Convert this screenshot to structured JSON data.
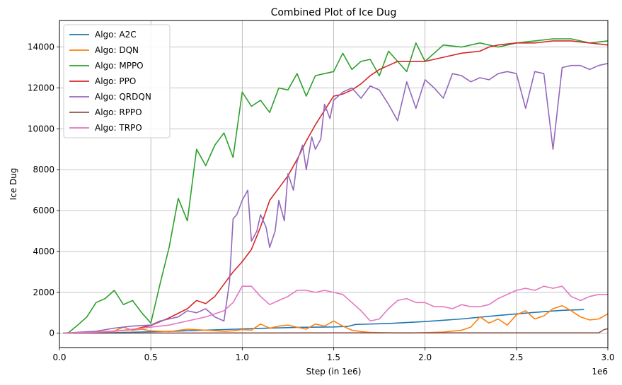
{
  "chart_data": {
    "type": "line",
    "title": "Combined Plot of Ice Dug",
    "xlabel": "Step (in 1e6)",
    "ylabel": "Ice Dug",
    "x_offset_label": "1e6",
    "xlim": [
      0,
      3.0
    ],
    "ylim": [
      -700,
      15300
    ],
    "x_ticks": [
      0,
      0.5,
      1.0,
      1.5,
      2.0,
      2.5,
      3.0
    ],
    "x_tick_labels": [
      "0.0",
      "0.5",
      "1.0",
      "1.5",
      "2.0",
      "2.5",
      "3.0"
    ],
    "y_ticks": [
      0,
      2000,
      4000,
      6000,
      8000,
      10000,
      12000,
      14000
    ],
    "y_tick_labels": [
      "0",
      "2000",
      "4000",
      "6000",
      "8000",
      "10000",
      "12000",
      "14000"
    ],
    "grid": true,
    "legend_position": "top-left",
    "series": [
      {
        "name": "Algo: A2C",
        "color": "#1f77b4",
        "x": [
          0.02,
          0.3,
          0.6,
          0.9,
          1.1,
          1.3,
          1.5,
          1.58,
          1.62,
          1.8,
          2.0,
          2.2,
          2.4,
          2.6,
          2.75,
          2.87
        ],
        "y": [
          0,
          30,
          90,
          180,
          240,
          290,
          310,
          340,
          430,
          480,
          570,
          700,
          870,
          1020,
          1120,
          1160
        ]
      },
      {
        "name": "Algo: DQN",
        "color": "#ff7f0e",
        "x": [
          0.02,
          0.2,
          0.3,
          0.35,
          0.4,
          0.45,
          0.5,
          0.6,
          0.7,
          0.8,
          0.9,
          0.95,
          1.0,
          1.05,
          1.1,
          1.15,
          1.2,
          1.25,
          1.3,
          1.35,
          1.4,
          1.45,
          1.5,
          1.55,
          1.6,
          1.65,
          1.7,
          1.8,
          1.9,
          2.0,
          2.1,
          2.2,
          2.25,
          2.3,
          2.35,
          2.4,
          2.45,
          2.5,
          2.55,
          2.6,
          2.65,
          2.7,
          2.75,
          2.8,
          2.85,
          2.9,
          2.95,
          3.0
        ],
        "y": [
          0,
          60,
          110,
          300,
          150,
          200,
          120,
          80,
          200,
          150,
          100,
          120,
          180,
          150,
          450,
          250,
          350,
          400,
          300,
          200,
          450,
          350,
          600,
          350,
          150,
          80,
          40,
          20,
          10,
          30,
          60,
          150,
          300,
          800,
          500,
          700,
          400,
          900,
          1100,
          700,
          850,
          1200,
          1350,
          1100,
          800,
          650,
          700,
          950
        ]
      },
      {
        "name": "Algo: MPPO",
        "color": "#2ca02c",
        "x": [
          0.02,
          0.05,
          0.1,
          0.15,
          0.2,
          0.25,
          0.3,
          0.35,
          0.4,
          0.45,
          0.5,
          0.55,
          0.6,
          0.65,
          0.7,
          0.75,
          0.8,
          0.85,
          0.9,
          0.95,
          1.0,
          1.05,
          1.1,
          1.15,
          1.2,
          1.25,
          1.3,
          1.35,
          1.4,
          1.45,
          1.5,
          1.55,
          1.6,
          1.65,
          1.7,
          1.75,
          1.8,
          1.85,
          1.9,
          1.95,
          2.0,
          2.1,
          2.2,
          2.3,
          2.4,
          2.5,
          2.6,
          2.7,
          2.8,
          2.9,
          3.0
        ],
        "y": [
          0,
          30,
          400,
          800,
          1500,
          1700,
          2100,
          1400,
          1600,
          1000,
          500,
          2400,
          4200,
          6600,
          5500,
          9000,
          8200,
          9200,
          9800,
          8600,
          11800,
          11100,
          11400,
          10800,
          12000,
          11900,
          12700,
          11600,
          12600,
          12700,
          12800,
          13700,
          12900,
          13300,
          13400,
          12600,
          13800,
          13300,
          12800,
          14200,
          13300,
          14100,
          14000,
          14200,
          14000,
          14200,
          14300,
          14400,
          14400,
          14200,
          14300
        ]
      },
      {
        "name": "Algo: PPO",
        "color": "#d62728",
        "x": [
          0.02,
          0.2,
          0.3,
          0.4,
          0.5,
          0.6,
          0.7,
          0.75,
          0.8,
          0.85,
          0.9,
          0.95,
          1.0,
          1.05,
          1.1,
          1.15,
          1.2,
          1.25,
          1.3,
          1.35,
          1.4,
          1.45,
          1.5,
          1.55,
          1.6,
          1.65,
          1.7,
          1.75,
          1.8,
          1.85,
          1.9,
          2.0,
          2.1,
          2.2,
          2.3,
          2.35,
          2.4,
          2.5,
          2.6,
          2.7,
          2.8,
          2.9,
          3.0
        ],
        "y": [
          0,
          50,
          100,
          180,
          380,
          750,
          1200,
          1600,
          1450,
          1800,
          2400,
          3000,
          3500,
          4100,
          5200,
          6500,
          7100,
          7700,
          8500,
          9400,
          10200,
          10900,
          11600,
          11700,
          11900,
          12200,
          12600,
          12900,
          13100,
          13300,
          13300,
          13300,
          13500,
          13700,
          13800,
          14000,
          14100,
          14200,
          14200,
          14300,
          14300,
          14200,
          14100
        ]
      },
      {
        "name": "Algo: QRDQN",
        "color": "#9467bd",
        "x": [
          0.02,
          0.2,
          0.3,
          0.4,
          0.5,
          0.55,
          0.6,
          0.65,
          0.7,
          0.75,
          0.8,
          0.85,
          0.9,
          0.93,
          0.95,
          0.97,
          1.0,
          1.03,
          1.05,
          1.08,
          1.1,
          1.13,
          1.15,
          1.18,
          1.2,
          1.23,
          1.25,
          1.28,
          1.3,
          1.33,
          1.35,
          1.38,
          1.4,
          1.43,
          1.45,
          1.48,
          1.5,
          1.55,
          1.6,
          1.65,
          1.7,
          1.75,
          1.8,
          1.85,
          1.9,
          1.95,
          2.0,
          2.05,
          2.1,
          2.15,
          2.2,
          2.25,
          2.3,
          2.35,
          2.4,
          2.45,
          2.5,
          2.55,
          2.6,
          2.65,
          2.7,
          2.75,
          2.8,
          2.85,
          2.9,
          2.95,
          3.0
        ],
        "y": [
          0,
          100,
          250,
          350,
          400,
          600,
          700,
          800,
          1100,
          1000,
          1200,
          800,
          600,
          2500,
          5600,
          5800,
          6500,
          7000,
          4500,
          5000,
          5800,
          5200,
          4200,
          5000,
          6500,
          5500,
          7800,
          7000,
          8400,
          9200,
          8000,
          9600,
          9000,
          9500,
          11200,
          10500,
          11400,
          11800,
          12000,
          11500,
          12100,
          11900,
          11200,
          10400,
          12300,
          11000,
          12400,
          12000,
          11500,
          12700,
          12600,
          12300,
          12500,
          12400,
          12700,
          12800,
          12700,
          11000,
          12800,
          12700,
          9000,
          13000,
          13100,
          13100,
          12900,
          13100,
          13200
        ]
      },
      {
        "name": "Algo: RPPO",
        "color": "#8c564b",
        "x": [
          0.02,
          0.5,
          1.0,
          1.5,
          2.0,
          2.5,
          2.95,
          2.98,
          3.0
        ],
        "y": [
          0,
          10,
          15,
          20,
          20,
          20,
          20,
          180,
          220
        ]
      },
      {
        "name": "Algo: TRPO",
        "color": "#e377c2",
        "x": [
          0.02,
          0.2,
          0.3,
          0.4,
          0.5,
          0.6,
          0.7,
          0.8,
          0.9,
          0.95,
          1.0,
          1.05,
          1.1,
          1.15,
          1.2,
          1.25,
          1.3,
          1.35,
          1.4,
          1.45,
          1.5,
          1.55,
          1.6,
          1.65,
          1.7,
          1.75,
          1.8,
          1.85,
          1.9,
          1.95,
          2.0,
          2.05,
          2.1,
          2.15,
          2.2,
          2.25,
          2.3,
          2.35,
          2.4,
          2.45,
          2.5,
          2.55,
          2.6,
          2.65,
          2.7,
          2.75,
          2.8,
          2.85,
          2.9,
          2.95,
          3.0
        ],
        "y": [
          0,
          50,
          100,
          200,
          300,
          400,
          600,
          800,
          1100,
          1500,
          2300,
          2300,
          1800,
          1400,
          1600,
          1800,
          2100,
          2100,
          2000,
          2100,
          2000,
          1900,
          1500,
          1100,
          600,
          700,
          1200,
          1600,
          1700,
          1500,
          1500,
          1300,
          1300,
          1200,
          1400,
          1300,
          1300,
          1400,
          1700,
          1900,
          2100,
          2200,
          2100,
          2300,
          2200,
          2300,
          1800,
          1600,
          1800,
          1900,
          1900
        ]
      }
    ]
  }
}
